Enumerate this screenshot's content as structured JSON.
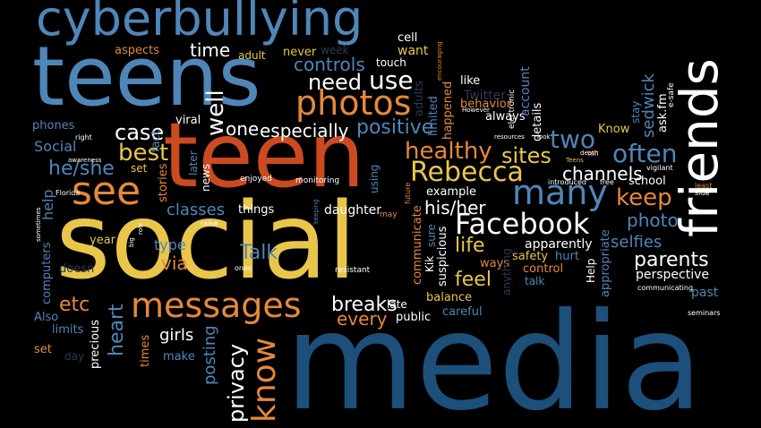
{
  "colors": {
    "background": "#000000",
    "blue": "#4f86b8",
    "navy": "#1c4f7a",
    "orange": "#e5893a",
    "red": "#cc4a1f",
    "yellow": "#e9c64a",
    "white": "#ffffff",
    "tan": "#d9b38a",
    "dark": "#2a3a52",
    "grey": "#8a8a8a"
  },
  "words": {
    "cyberbullying": "cyberbullying",
    "teens": "teens",
    "teen": "teen",
    "social": "social",
    "media": "media",
    "friends": "friends",
    "facebook": "Facebook",
    "photos": "photos",
    "many": "many",
    "see": "see",
    "messages": "messages",
    "rebecca": "Rebecca",
    "need": "need",
    "use": "use",
    "well": "well",
    "case": "case",
    "best": "best",
    "one": "one",
    "especially": "especially",
    "positive": "positive",
    "healthy": "healthy",
    "sites": "sites",
    "two": "two",
    "often": "often",
    "keep": "keep",
    "parents": "parents",
    "know": "know",
    "privacy": "privacy",
    "breaks": "breaks",
    "every": "every",
    "time": "time",
    "controls": "controls",
    "classes": "classes",
    "talk": "Talk",
    "via": "via",
    "type": "type",
    "he_she": "he/she",
    "his_her": "his/her",
    "life": "life",
    "feel": "feel",
    "etc": "etc",
    "heart": "heart",
    "girls": "girls",
    "posting": "posting",
    "channels": "channels",
    "photo": "photo",
    "selfies": "selfies",
    "perspective": "perspective",
    "past": "past",
    "sedwick": "sedwick",
    "school": "school",
    "know_lower": "Know",
    "like": "like",
    "twitter": "Twitter",
    "behavior": "behavior",
    "always": "always",
    "happened": "happened",
    "limited": "limited",
    "adults": "adults",
    "account": "account",
    "details": "details",
    "electronic": "electronic",
    "stay": "stay",
    "ask_fm": "ask.fm",
    "e_safe": "e-safe",
    "aspects": "aspects",
    "phones": "phones",
    "social_small": "Social",
    "adult": "adult",
    "never": "never",
    "week": "week",
    "cell": "cell",
    "want": "want",
    "touch": "touch",
    "viral": "viral",
    "fact": "fact",
    "stories": "stories",
    "news": "news",
    "later": "later",
    "enjoyed": "enjoyed",
    "monitoring": "monitoring",
    "things": "things",
    "daughter": "daughter",
    "may": "may",
    "example": "example",
    "communicate": "communicate",
    "sure": "sure",
    "kik": "Kik",
    "suspicious": "suspicious",
    "ways": "ways",
    "balance": "balance",
    "careful": "careful",
    "late": "late",
    "public": "public",
    "anything": "anything",
    "safety": "safety",
    "hurt": "hurt",
    "control": "control",
    "talk_small": "talk",
    "apparently": "apparently",
    "help": "help",
    "help_cap": "Help",
    "appropriate": "appropriate",
    "communicating": "communicating",
    "seminars": "seminars",
    "year": "year",
    "doesn": "doesn",
    "computers": "computers",
    "also": "Also",
    "limits": "limits",
    "set": "set",
    "day": "day",
    "precious": "precious",
    "times": "times",
    "make": "make",
    "resistant": "resistant",
    "ones": "ones",
    "raise": "raise",
    "vigilant": "vigilant",
    "free": "free",
    "tell": "tell",
    "side": "side",
    "introduced": "introduced",
    "death": "death",
    "teens_small": "Teens",
    "resources": "resources",
    "look": "look",
    "however": "However",
    "encouraging": "encouraging",
    "awareness": "awareness",
    "right": "right",
    "florida": "Florida",
    "big": "big",
    "role": "role",
    "sometimes": "sometimes",
    "set_small": "set",
    "least": "least",
    "future": "future",
    "using": "using",
    "keeping": "keeping",
    "cool": "cool",
    "tweet": "tweet",
    "site": "site",
    "hard": "hard"
  }
}
